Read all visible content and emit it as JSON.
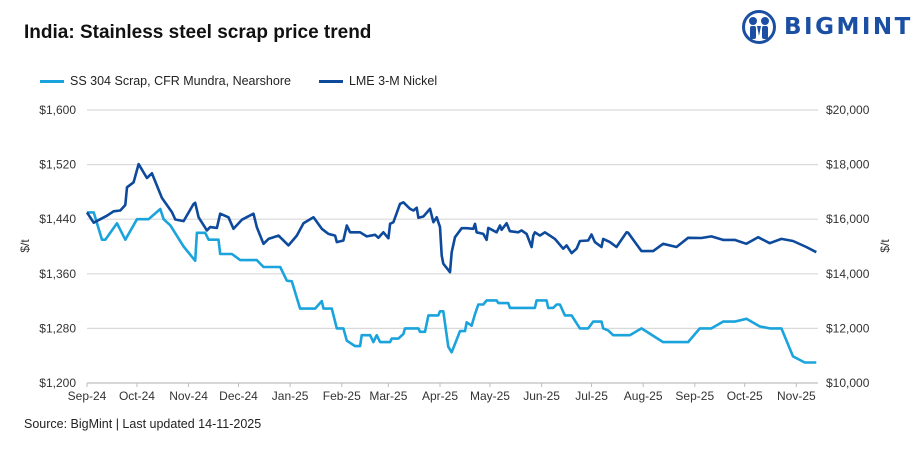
{
  "chart_data": {
    "type": "line",
    "title": "India: Stainless steel scrap price trend",
    "source": "Source: BigMint | Last updated 14-11-2025",
    "ylabel_left": "$/t",
    "ylabel_right": "$/t",
    "ylim_left": [
      1200,
      1600
    ],
    "ylim_right": [
      10000,
      20000
    ],
    "yticks_left": [
      "$1,200",
      "$1,280",
      "$1,360",
      "$1,440",
      "$1,520",
      "$1,600"
    ],
    "yticks_left_values": [
      1200,
      1280,
      1360,
      1440,
      1520,
      1600
    ],
    "yticks_right": [
      "$10,000",
      "$12,000",
      "$14,000",
      "$16,000",
      "$18,000",
      "$20,000"
    ],
    "xlim": [
      "2024-09-01",
      "2025-11-14"
    ],
    "xticks": [
      {
        "label": "Sep-24",
        "date": "2024-09-01"
      },
      {
        "label": "Oct-24",
        "date": "2024-10-01"
      },
      {
        "label": "Nov-24",
        "date": "2024-11-01"
      },
      {
        "label": "Dec-24",
        "date": "2024-12-01"
      },
      {
        "label": "Jan-25",
        "date": "2025-01-01"
      },
      {
        "label": "Feb-25",
        "date": "2025-02-01"
      },
      {
        "label": "Mar-25",
        "date": "2025-03-01"
      },
      {
        "label": "Apr-25",
        "date": "2025-04-01"
      },
      {
        "label": "May-25",
        "date": "2025-05-01"
      },
      {
        "label": "Jun-25",
        "date": "2025-06-01"
      },
      {
        "label": "Jul-25",
        "date": "2025-07-01"
      },
      {
        "label": "Aug-25",
        "date": "2025-08-01"
      },
      {
        "label": "Sep-25",
        "date": "2025-09-01"
      },
      {
        "label": "Oct-25",
        "date": "2025-10-01"
      },
      {
        "label": "Nov-25",
        "date": "2025-11-01"
      }
    ],
    "grid": "horizontal",
    "legend": "top-left",
    "series": [
      {
        "name": "SS 304 Scrap, CFR Mundra, Nearshore",
        "axis": "left",
        "color": "#1aa3dc",
        "points": [
          [
            "2024-09-01",
            1450
          ],
          [
            "2024-09-05",
            1450
          ],
          [
            "2024-09-10",
            1410
          ],
          [
            "2024-09-12",
            1410
          ],
          [
            "2024-09-19",
            1434
          ],
          [
            "2024-09-24",
            1410
          ],
          [
            "2024-10-01",
            1440
          ],
          [
            "2024-10-08",
            1440
          ],
          [
            "2024-10-15",
            1455
          ],
          [
            "2024-10-17",
            1440
          ],
          [
            "2024-10-21",
            1431
          ],
          [
            "2024-10-29",
            1400
          ],
          [
            "2024-11-05",
            1379
          ],
          [
            "2024-11-06",
            1420
          ],
          [
            "2024-11-11",
            1420
          ],
          [
            "2024-11-13",
            1410
          ],
          [
            "2024-11-19",
            1410
          ],
          [
            "2024-11-20",
            1389
          ],
          [
            "2024-11-27",
            1389
          ],
          [
            "2024-12-02",
            1380
          ],
          [
            "2024-12-12",
            1380
          ],
          [
            "2024-12-16",
            1370
          ],
          [
            "2024-12-26",
            1370
          ],
          [
            "2024-12-30",
            1350
          ],
          [
            "2025-01-02",
            1349
          ],
          [
            "2025-01-07",
            1309
          ],
          [
            "2025-01-16",
            1309
          ],
          [
            "2025-01-20",
            1320
          ],
          [
            "2025-01-21",
            1309
          ],
          [
            "2025-01-26",
            1309
          ],
          [
            "2025-01-29",
            1280
          ],
          [
            "2025-02-02",
            1280
          ],
          [
            "2025-02-04",
            1262
          ],
          [
            "2025-02-09",
            1254
          ],
          [
            "2025-02-12",
            1254
          ],
          [
            "2025-02-13",
            1270
          ],
          [
            "2025-02-18",
            1270
          ],
          [
            "2025-02-20",
            1260
          ],
          [
            "2025-02-22",
            1270
          ],
          [
            "2025-02-24",
            1260
          ],
          [
            "2025-03-02",
            1260
          ],
          [
            "2025-03-03",
            1265
          ],
          [
            "2025-03-07",
            1265
          ],
          [
            "2025-03-10",
            1272
          ],
          [
            "2025-03-11",
            1280
          ],
          [
            "2025-03-19",
            1280
          ],
          [
            "2025-03-20",
            1275
          ],
          [
            "2025-03-23",
            1275
          ],
          [
            "2025-03-25",
            1299
          ],
          [
            "2025-03-31",
            1299
          ],
          [
            "2025-04-01",
            1305
          ],
          [
            "2025-04-03",
            1305
          ],
          [
            "2025-04-06",
            1253
          ],
          [
            "2025-04-08",
            1245
          ],
          [
            "2025-04-13",
            1276
          ],
          [
            "2025-04-16",
            1276
          ],
          [
            "2025-04-17",
            1289
          ],
          [
            "2025-04-20",
            1284
          ],
          [
            "2025-04-22",
            1301
          ],
          [
            "2025-04-24",
            1315
          ],
          [
            "2025-04-27",
            1315
          ],
          [
            "2025-04-29",
            1321
          ],
          [
            "2025-05-05",
            1321
          ],
          [
            "2025-05-06",
            1317
          ],
          [
            "2025-05-12",
            1317
          ],
          [
            "2025-05-13",
            1310
          ],
          [
            "2025-05-28",
            1310
          ],
          [
            "2025-05-29",
            1321
          ],
          [
            "2025-06-04",
            1321
          ],
          [
            "2025-06-05",
            1310
          ],
          [
            "2025-06-08",
            1310
          ],
          [
            "2025-06-10",
            1315
          ],
          [
            "2025-06-12",
            1315
          ],
          [
            "2025-06-15",
            1299
          ],
          [
            "2025-06-19",
            1299
          ],
          [
            "2025-06-24",
            1280
          ],
          [
            "2025-06-29",
            1280
          ],
          [
            "2025-07-02",
            1290
          ],
          [
            "2025-07-07",
            1290
          ],
          [
            "2025-07-08",
            1280
          ],
          [
            "2025-07-11",
            1277
          ],
          [
            "2025-07-14",
            1270
          ],
          [
            "2025-07-24",
            1270
          ],
          [
            "2025-07-31",
            1280
          ],
          [
            "2025-08-13",
            1260
          ],
          [
            "2025-08-28",
            1260
          ],
          [
            "2025-09-04",
            1280
          ],
          [
            "2025-09-11",
            1280
          ],
          [
            "2025-09-18",
            1290
          ],
          [
            "2025-09-25",
            1290
          ],
          [
            "2025-10-02",
            1294
          ],
          [
            "2025-10-10",
            1283
          ],
          [
            "2025-10-16",
            1280
          ],
          [
            "2025-10-23",
            1280
          ],
          [
            "2025-10-30",
            1239
          ],
          [
            "2025-11-06",
            1230
          ],
          [
            "2025-11-13",
            1230
          ]
        ]
      },
      {
        "name": "LME 3-M Nickel",
        "axis": "right",
        "color": "#0d4a9c",
        "points": [
          [
            "2024-09-01",
            16250
          ],
          [
            "2024-09-05",
            15870
          ],
          [
            "2024-09-13",
            16130
          ],
          [
            "2024-09-17",
            16290
          ],
          [
            "2024-09-21",
            16320
          ],
          [
            "2024-09-24",
            16520
          ],
          [
            "2024-09-25",
            17170
          ],
          [
            "2024-09-29",
            17350
          ],
          [
            "2024-10-02",
            18020
          ],
          [
            "2024-10-07",
            17510
          ],
          [
            "2024-10-10",
            17680
          ],
          [
            "2024-10-16",
            16780
          ],
          [
            "2024-10-22",
            16260
          ],
          [
            "2024-10-24",
            15990
          ],
          [
            "2024-10-29",
            15930
          ],
          [
            "2024-11-04",
            16560
          ],
          [
            "2024-11-05",
            16600
          ],
          [
            "2024-11-07",
            16070
          ],
          [
            "2024-11-12",
            15590
          ],
          [
            "2024-11-14",
            15710
          ],
          [
            "2024-11-18",
            15680
          ],
          [
            "2024-11-20",
            16200
          ],
          [
            "2024-11-25",
            16070
          ],
          [
            "2024-11-28",
            15650
          ],
          [
            "2024-12-03",
            15980
          ],
          [
            "2024-12-10",
            16200
          ],
          [
            "2024-12-12",
            15710
          ],
          [
            "2024-12-16",
            15100
          ],
          [
            "2024-12-19",
            15280
          ],
          [
            "2024-12-25",
            15400
          ],
          [
            "2024-12-31",
            15040
          ],
          [
            "2025-01-05",
            15400
          ],
          [
            "2025-01-09",
            15850
          ],
          [
            "2025-01-15",
            16070
          ],
          [
            "2025-01-20",
            15650
          ],
          [
            "2025-01-24",
            15460
          ],
          [
            "2025-01-28",
            15400
          ],
          [
            "2025-01-29",
            15160
          ],
          [
            "2025-02-02",
            15220
          ],
          [
            "2025-02-04",
            15770
          ],
          [
            "2025-02-06",
            15520
          ],
          [
            "2025-02-12",
            15520
          ],
          [
            "2025-02-16",
            15370
          ],
          [
            "2025-02-21",
            15430
          ],
          [
            "2025-02-23",
            15320
          ],
          [
            "2025-02-26",
            15520
          ],
          [
            "2025-03-01",
            15300
          ],
          [
            "2025-03-02",
            15830
          ],
          [
            "2025-03-04",
            15890
          ],
          [
            "2025-03-08",
            16560
          ],
          [
            "2025-03-10",
            16620
          ],
          [
            "2025-03-14",
            16380
          ],
          [
            "2025-03-16",
            16320
          ],
          [
            "2025-03-18",
            16420
          ],
          [
            "2025-03-19",
            16050
          ],
          [
            "2025-03-22",
            16100
          ],
          [
            "2025-03-26",
            16380
          ],
          [
            "2025-03-28",
            15890
          ],
          [
            "2025-03-30",
            16070
          ],
          [
            "2025-04-01",
            15710
          ],
          [
            "2025-04-02",
            14670
          ],
          [
            "2025-04-03",
            14370
          ],
          [
            "2025-04-07",
            14060
          ],
          [
            "2025-04-08",
            14790
          ],
          [
            "2025-04-10",
            15340
          ],
          [
            "2025-04-14",
            15670
          ],
          [
            "2025-04-17",
            15670
          ],
          [
            "2025-04-21",
            15650
          ],
          [
            "2025-04-22",
            15830
          ],
          [
            "2025-04-23",
            15520
          ],
          [
            "2025-04-27",
            15460
          ],
          [
            "2025-04-29",
            15240
          ],
          [
            "2025-04-30",
            15680
          ],
          [
            "2025-05-05",
            15520
          ],
          [
            "2025-05-07",
            15770
          ],
          [
            "2025-05-08",
            15610
          ],
          [
            "2025-05-11",
            15850
          ],
          [
            "2025-05-13",
            15560
          ],
          [
            "2025-05-18",
            15520
          ],
          [
            "2025-05-20",
            15590
          ],
          [
            "2025-05-23",
            15460
          ],
          [
            "2025-05-26",
            14980
          ],
          [
            "2025-05-27",
            15400
          ],
          [
            "2025-05-28",
            15520
          ],
          [
            "2025-05-31",
            15400
          ],
          [
            "2025-06-03",
            15520
          ],
          [
            "2025-06-09",
            15280
          ],
          [
            "2025-06-14",
            14920
          ],
          [
            "2025-06-16",
            15040
          ],
          [
            "2025-06-19",
            14760
          ],
          [
            "2025-06-22",
            14920
          ],
          [
            "2025-06-24",
            15200
          ],
          [
            "2025-06-29",
            15220
          ],
          [
            "2025-07-01",
            15440
          ],
          [
            "2025-07-03",
            15160
          ],
          [
            "2025-07-07",
            14980
          ],
          [
            "2025-07-08",
            15280
          ],
          [
            "2025-07-12",
            15160
          ],
          [
            "2025-07-16",
            14980
          ],
          [
            "2025-07-22",
            15520
          ],
          [
            "2025-07-23",
            15500
          ],
          [
            "2025-07-31",
            14830
          ],
          [
            "2025-08-07",
            14830
          ],
          [
            "2025-08-13",
            15100
          ],
          [
            "2025-08-21",
            14980
          ],
          [
            "2025-08-28",
            15320
          ],
          [
            "2025-09-05",
            15310
          ],
          [
            "2025-09-11",
            15370
          ],
          [
            "2025-09-18",
            15240
          ],
          [
            "2025-09-25",
            15240
          ],
          [
            "2025-10-02",
            15100
          ],
          [
            "2025-10-09",
            15340
          ],
          [
            "2025-10-16",
            15120
          ],
          [
            "2025-10-23",
            15280
          ],
          [
            "2025-10-30",
            15200
          ],
          [
            "2025-11-07",
            14980
          ],
          [
            "2025-11-13",
            14790
          ]
        ]
      }
    ]
  },
  "logo": {
    "text": "BIGMINT"
  }
}
